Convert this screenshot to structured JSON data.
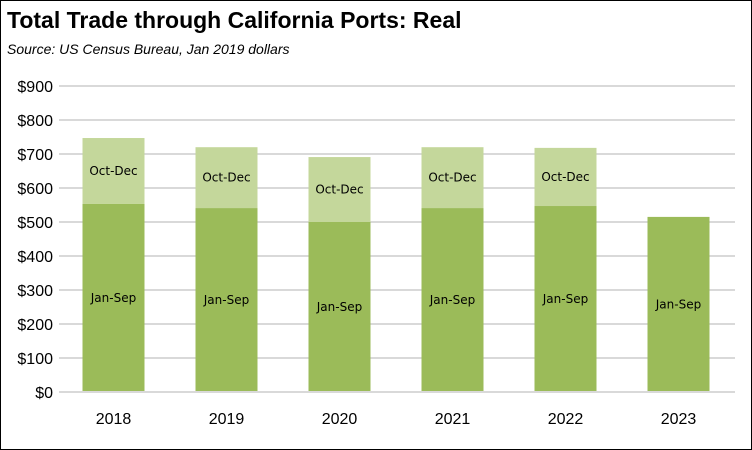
{
  "chart_data": {
    "type": "bar",
    "stacked": true,
    "title": "Total Trade through California Ports:  Real",
    "subtitle": "Source:  US Census Bureau, Jan 2019 dollars",
    "xlabel": "",
    "ylabel": "",
    "categories": [
      "2018",
      "2019",
      "2020",
      "2021",
      "2022",
      "2023"
    ],
    "series": [
      {
        "name": "Jan-Sep",
        "color": "#9BBB59",
        "values": [
          553,
          541,
          500,
          541,
          547,
          515
        ]
      },
      {
        "name": "Oct-Dec",
        "color": "#C4D79B",
        "values": [
          194,
          179,
          191,
          179,
          171,
          null
        ]
      }
    ],
    "ylim": [
      0,
      900
    ],
    "yticks": [
      0,
      100,
      200,
      300,
      400,
      500,
      600,
      700,
      800,
      900
    ],
    "ytick_labels": [
      "$0",
      "$100",
      "$200",
      "$300",
      "$400",
      "$500",
      "$600",
      "$700",
      "$800",
      "$900"
    ],
    "grid": true,
    "grid_color": "#D9D9D9",
    "legend": "none"
  }
}
